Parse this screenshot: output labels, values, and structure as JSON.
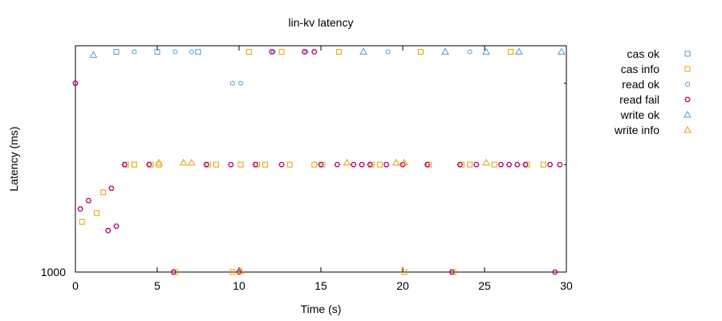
{
  "chart_data": {
    "type": "scatter",
    "title": "lin-kv latency",
    "xlabel": "Time (s)",
    "ylabel": "Latency (ms)",
    "xlim": [
      0,
      30
    ],
    "yscale": "log",
    "ylim": [
      1000,
      1600
    ],
    "x_ticks": [
      "0",
      "5",
      "10",
      "15",
      "20",
      "25",
      "30"
    ],
    "x_tick_values": [
      0,
      5,
      10,
      15,
      20,
      25,
      30
    ],
    "y_ticks": [
      "1000"
    ],
    "y_tick_values": [
      1000
    ],
    "grid": false,
    "legend_position": "outside-right",
    "series": [
      {
        "name": "cas ok",
        "marker": "square",
        "color": "#4a9fd4",
        "points": [
          [
            2.5,
            1580
          ],
          [
            5.0,
            1580
          ],
          [
            7.5,
            1580
          ]
        ]
      },
      {
        "name": "cas info",
        "marker": "square",
        "color": "#e8a000",
        "points": [
          [
            0.4,
            1110
          ],
          [
            1.3,
            1130
          ],
          [
            1.7,
            1180
          ],
          [
            3.1,
            1250
          ],
          [
            3.6,
            1250
          ],
          [
            4.6,
            1250
          ],
          [
            5.1,
            1250
          ],
          [
            6.1,
            1000
          ],
          [
            8.1,
            1250
          ],
          [
            8.6,
            1250
          ],
          [
            9.6,
            1000
          ],
          [
            10.1,
            1250
          ],
          [
            10.6,
            1580
          ],
          [
            11.1,
            1250
          ],
          [
            11.6,
            1250
          ],
          [
            12.6,
            1580
          ],
          [
            13.1,
            1250
          ],
          [
            14.6,
            1250
          ],
          [
            15.1,
            1250
          ],
          [
            16.1,
            1580
          ],
          [
            18.1,
            1250
          ],
          [
            18.6,
            1250
          ],
          [
            20.1,
            1000
          ],
          [
            21.1,
            1580
          ],
          [
            21.6,
            1250
          ],
          [
            23.1,
            1000
          ],
          [
            23.6,
            1250
          ],
          [
            24.1,
            1250
          ],
          [
            25.6,
            1250
          ],
          [
            26.6,
            1580
          ],
          [
            27.6,
            1250
          ],
          [
            28.6,
            1250
          ]
        ]
      },
      {
        "name": "read ok",
        "marker": "circle",
        "color": "#4a9fd4",
        "points": [
          [
            3.6,
            1580
          ],
          [
            6.1,
            1580
          ],
          [
            7.1,
            1580
          ],
          [
            9.6,
            1480
          ],
          [
            10.1,
            1480
          ],
          [
            12.1,
            1580
          ],
          [
            14.1,
            1580
          ],
          [
            19.1,
            1580
          ],
          [
            24.1,
            1580
          ]
        ]
      },
      {
        "name": "read fail",
        "marker": "star",
        "color": "#c0007a",
        "points": [
          [
            0.0,
            1480
          ],
          [
            0.3,
            1140
          ],
          [
            0.8,
            1160
          ],
          [
            2.0,
            1090
          ],
          [
            2.2,
            1190
          ],
          [
            2.5,
            1100
          ],
          [
            3.0,
            1250
          ],
          [
            4.5,
            1250
          ],
          [
            6.0,
            1000
          ],
          [
            8.0,
            1250
          ],
          [
            9.5,
            1250
          ],
          [
            10.0,
            1000
          ],
          [
            11.0,
            1250
          ],
          [
            12.0,
            1580
          ],
          [
            12.6,
            1250
          ],
          [
            14.0,
            1580
          ],
          [
            14.6,
            1580
          ],
          [
            15.0,
            1250
          ],
          [
            16.0,
            1250
          ],
          [
            17.0,
            1250
          ],
          [
            17.5,
            1250
          ],
          [
            18.0,
            1250
          ],
          [
            19.0,
            1250
          ],
          [
            20.0,
            1250
          ],
          [
            21.5,
            1250
          ],
          [
            23.0,
            1000
          ],
          [
            23.5,
            1250
          ],
          [
            24.5,
            1250
          ],
          [
            26.0,
            1250
          ],
          [
            26.5,
            1250
          ],
          [
            27.0,
            1250
          ],
          [
            27.5,
            1250
          ],
          [
            29.0,
            1250
          ],
          [
            29.3,
            1000
          ],
          [
            29.6,
            1250
          ]
        ]
      },
      {
        "name": "write ok",
        "marker": "triangle",
        "color": "#4a9fd4",
        "points": [
          [
            1.1,
            1570
          ],
          [
            17.6,
            1580
          ],
          [
            22.6,
            1580
          ],
          [
            25.1,
            1580
          ],
          [
            27.1,
            1580
          ],
          [
            29.7,
            1580
          ]
        ]
      },
      {
        "name": "write info",
        "marker": "triangle",
        "color": "#e8a000",
        "points": [
          [
            5.1,
            1255
          ],
          [
            6.6,
            1255
          ],
          [
            7.1,
            1255
          ],
          [
            10.1,
            1002
          ],
          [
            16.6,
            1255
          ],
          [
            19.6,
            1255
          ],
          [
            20.1,
            1255
          ],
          [
            25.1,
            1255
          ]
        ]
      }
    ]
  }
}
